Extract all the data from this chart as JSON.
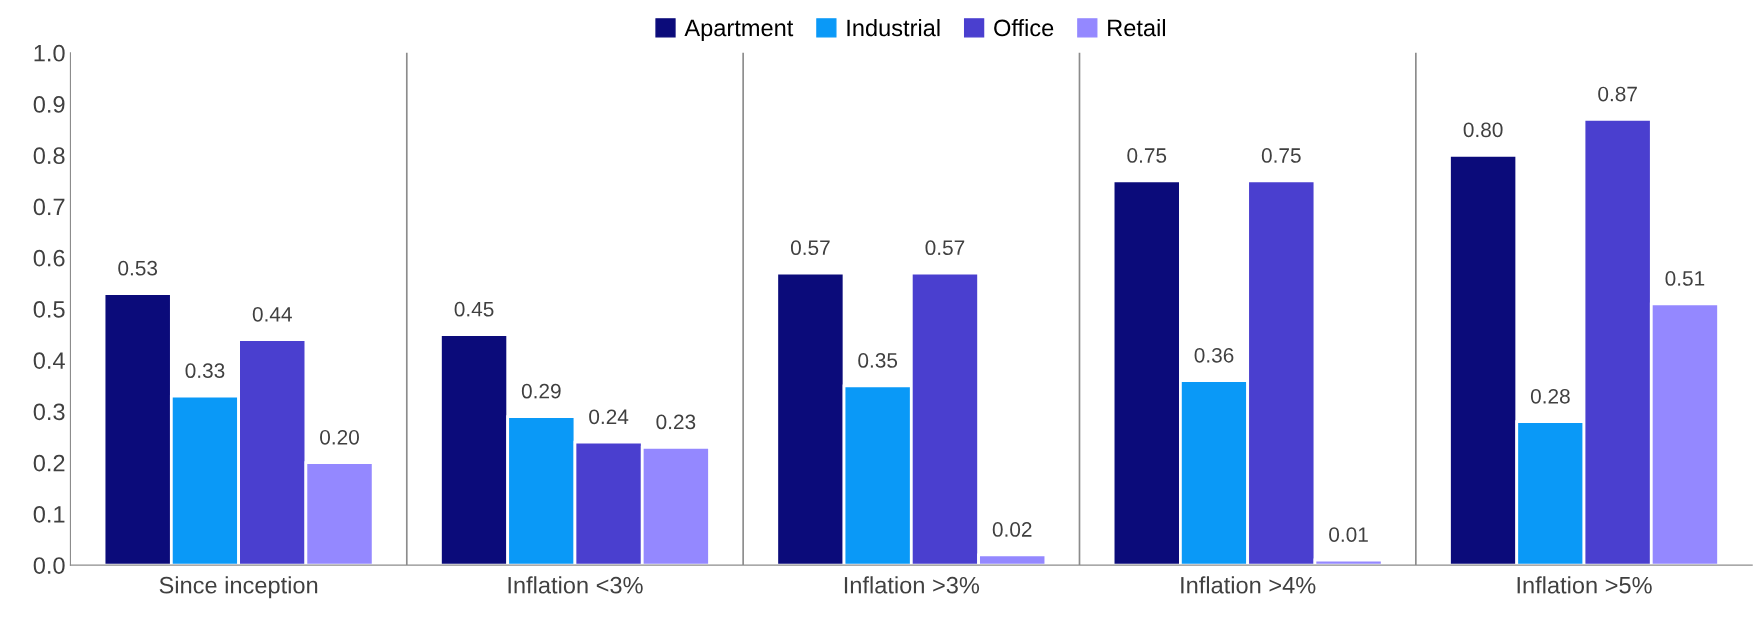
{
  "chart_data": {
    "type": "bar",
    "categories": [
      "Since inception",
      "Inflation <3%",
      "Inflation >3%",
      "Inflation >4%",
      "Inflation >5%"
    ],
    "series": [
      {
        "name": "Apartment",
        "color": "#0b0b7a",
        "values": [
          0.53,
          0.45,
          0.57,
          0.75,
          0.8
        ],
        "value_labels": [
          "0.53",
          "0.45",
          "0.57",
          "0.75",
          "0.80"
        ]
      },
      {
        "name": "Industrial",
        "color": "#0a99f7",
        "values": [
          0.33,
          0.29,
          0.35,
          0.36,
          0.28
        ],
        "value_labels": [
          "0.33",
          "0.29",
          "0.35",
          "0.36",
          "0.28"
        ]
      },
      {
        "name": "Office",
        "color": "#4a3fcf",
        "values": [
          0.44,
          0.24,
          0.57,
          0.75,
          0.87
        ],
        "value_labels": [
          "0.44",
          "0.24",
          "0.57",
          "0.75",
          "0.87"
        ]
      },
      {
        "name": "Retail",
        "color": "#9488ff",
        "values": [
          0.2,
          0.23,
          0.02,
          0.01,
          0.51
        ],
        "value_labels": [
          "0.20",
          "0.23",
          "0.02",
          "0.01",
          "0.51"
        ]
      }
    ],
    "ylim": [
      0,
      1.0
    ],
    "yticks": [
      {
        "value": 0,
        "label": "0.0"
      },
      {
        "value": 0.1,
        "label": "0.1"
      },
      {
        "value": 0.2,
        "label": "0.2"
      },
      {
        "value": 0.3,
        "label": "0.3"
      },
      {
        "value": 0.4,
        "label": "0.4"
      },
      {
        "value": 0.5,
        "label": "0.5"
      },
      {
        "value": 0.6,
        "label": "0.6"
      },
      {
        "value": 0.7,
        "label": "0.7"
      },
      {
        "value": 0.8,
        "label": "0.8"
      },
      {
        "value": 0.9,
        "label": "0.9"
      },
      {
        "value": 1.0,
        "label": "1.0"
      }
    ],
    "grid": "x",
    "legend": "top"
  }
}
